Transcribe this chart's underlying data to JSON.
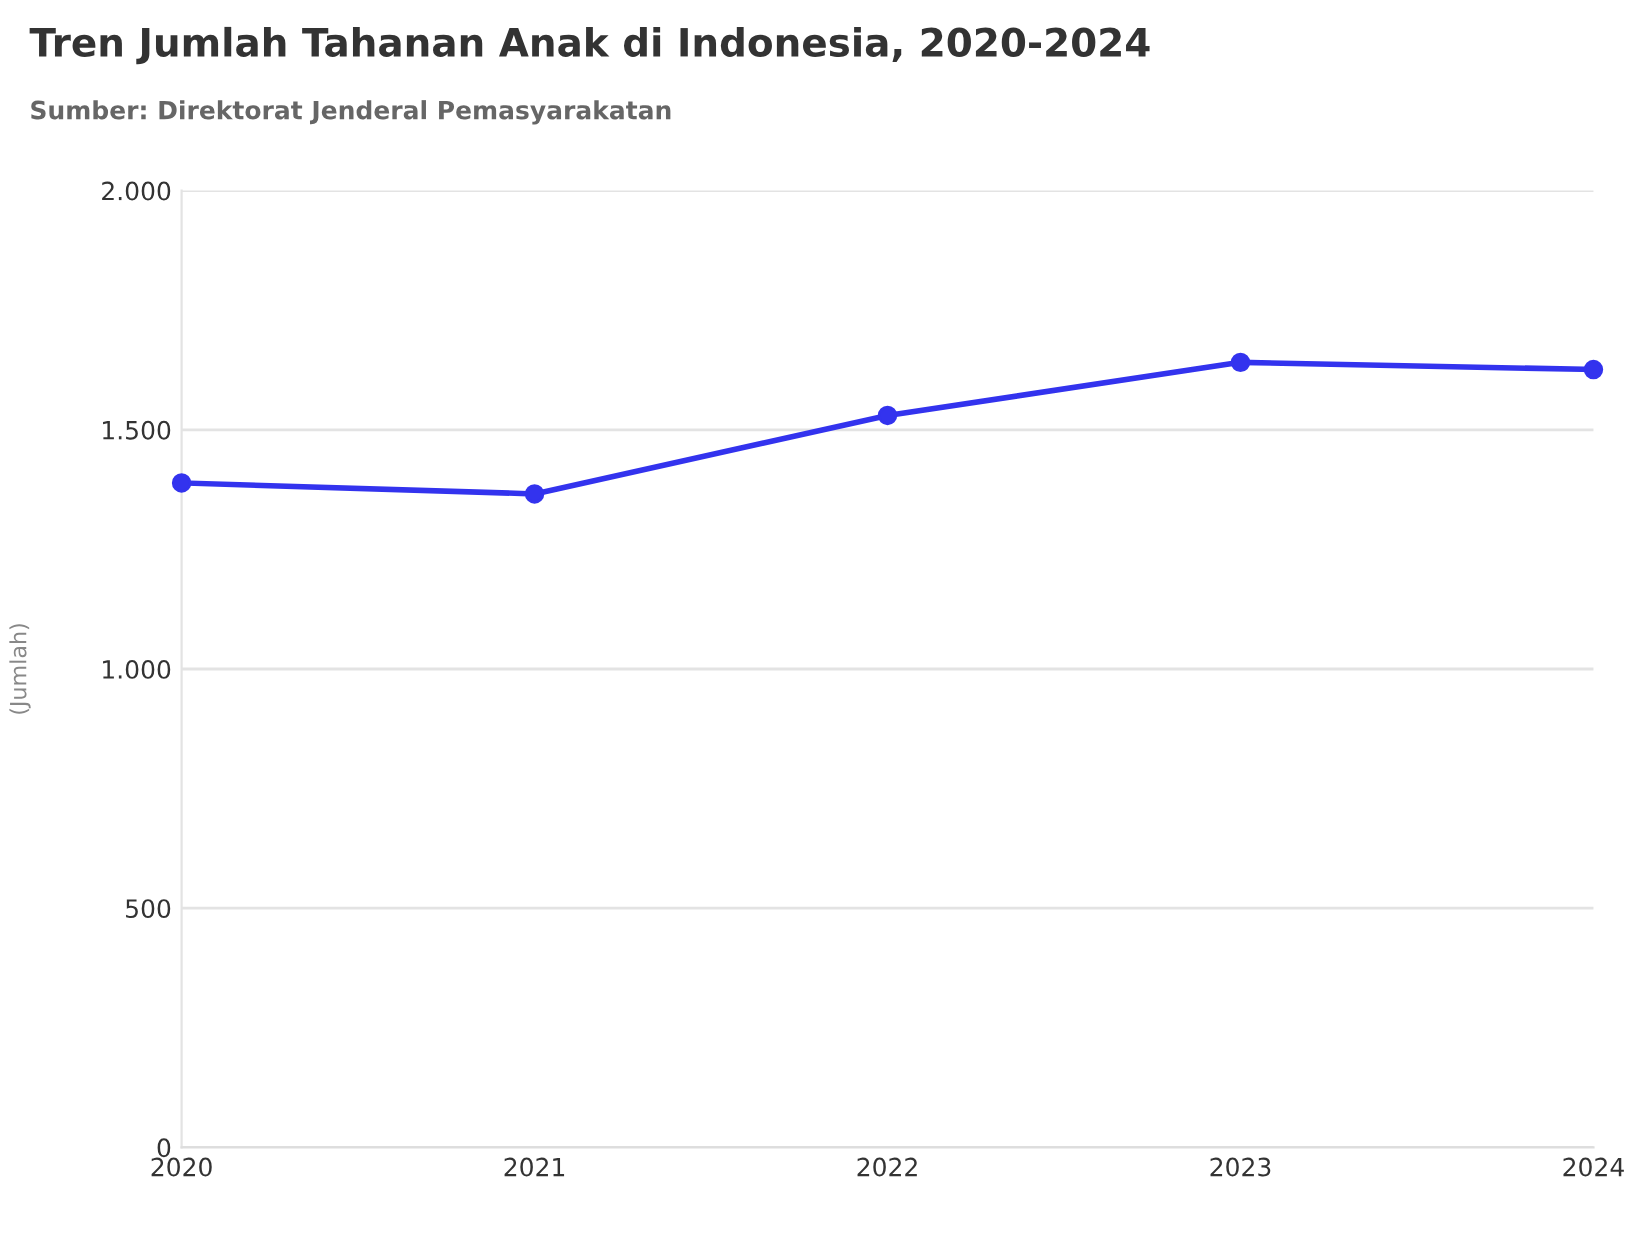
{
  "chart_data": {
    "type": "line",
    "title": "Tren Jumlah Tahanan Anak di Indonesia, 2020-2024",
    "subtitle": "Sumber: Direktorat Jenderal Pemasyarakatan",
    "ylabel": "(Jumlah)",
    "categories": [
      "2020",
      "2021",
      "2022",
      "2023",
      "2024"
    ],
    "series": [
      {
        "color": "#3333ee",
        "values": [
          1389,
          1366,
          1530,
          1641,
          1626
        ]
      }
    ],
    "ylim": [
      0,
      2000
    ],
    "yticks": [
      0,
      {
        "value": 500,
        "label": "500"
      },
      {
        "value": 1000,
        "label": "1.000"
      },
      {
        "value": 1500,
        "label": "1.500"
      },
      {
        "value": 2000,
        "label": "2.000"
      }
    ],
    "grid": "y",
    "marker": "circle",
    "line_style": "solid",
    "legend": false
  }
}
